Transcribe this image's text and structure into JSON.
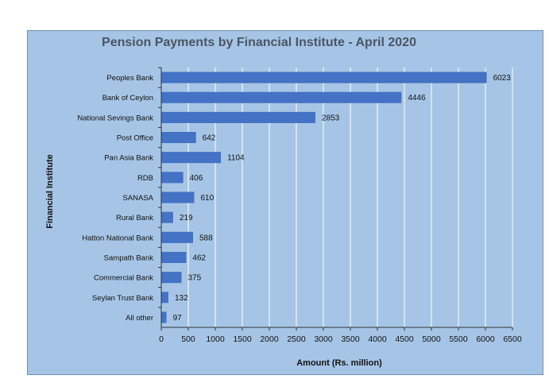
{
  "chart_data": {
    "type": "bar",
    "orientation": "horizontal",
    "title": "Pension Payments by Financial Institute - April 2020",
    "xlabel": "Amount (Rs. million)",
    "ylabel": "Financial Institute",
    "categories": [
      "Peoples Bank",
      "Bank of Ceylon",
      "National Sevings Bank",
      "Post Office",
      "Pan Asia Bank",
      "RDB",
      "SANASA",
      "Rural Bank",
      "Hatton National Bank",
      "Sampath Bank",
      "Commercial Bank",
      "Seylan Trust Bank",
      "All other"
    ],
    "values": [
      6023,
      4446,
      2853,
      642,
      1104,
      406,
      610,
      219,
      588,
      462,
      375,
      132,
      97
    ],
    "xlim": [
      0,
      6500
    ],
    "xticks": [
      0,
      500,
      1000,
      1500,
      2000,
      2500,
      3000,
      3500,
      4000,
      4500,
      5000,
      5500,
      6000,
      6500
    ],
    "grid": "vertical",
    "colors": {
      "bar": "#4472c4",
      "plot_background": "#a6c5e6",
      "gridline": "#ffffff",
      "title": "#4b5563"
    }
  }
}
